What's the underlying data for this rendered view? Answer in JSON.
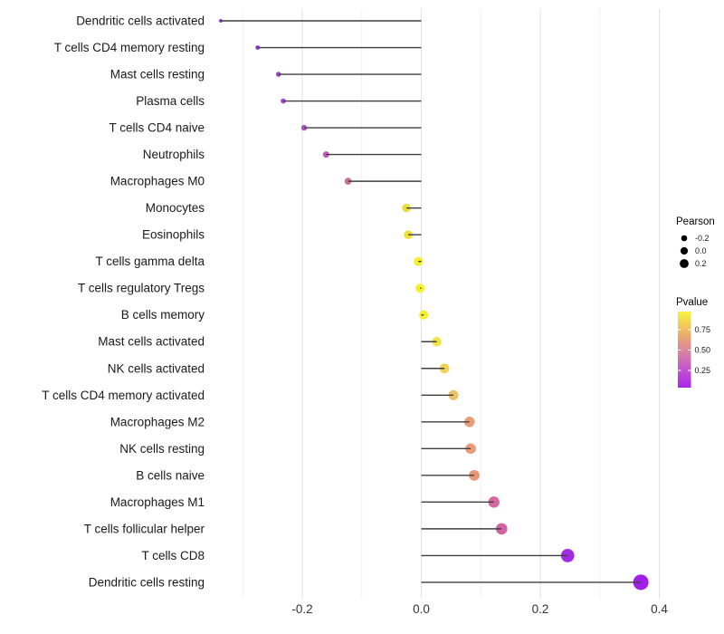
{
  "chart_data": {
    "type": "scatter",
    "variant": "lollipop",
    "title": "",
    "xlabel": "",
    "ylabel": "",
    "grid": "vertical-only",
    "legend_position": "right",
    "x_ticks": [
      -0.2,
      0.0,
      0.2,
      0.4
    ],
    "x_tick_labels": [
      "-0.2",
      "0.0",
      "0.2",
      "0.4"
    ],
    "x_minor_ticks": [
      -0.3,
      -0.1,
      0.1,
      0.3
    ],
    "xlim": [
      -0.355,
      0.4175
    ],
    "categories": [
      "Dendritic cells activated",
      "T cells CD4 memory resting",
      "Mast cells resting",
      "Plasma cells",
      "T cells CD4 naive",
      "Neutrophils",
      "Macrophages M0",
      "Monocytes",
      "Eosinophils",
      "T cells gamma delta",
      "T cells regulatory  Tregs",
      "B cells memory",
      "Mast cells activated",
      "NK cells activated",
      "T cells CD4 memory activated",
      "Macrophages M2",
      "NK cells resting",
      "B cells naive",
      "Macrophages M1",
      "T cells follicular helper",
      "T cells CD8",
      "Dendritic cells resting"
    ],
    "series": [
      {
        "name": "Pearson correlation",
        "values": [
          -0.337,
          -0.275,
          -0.24,
          -0.232,
          -0.197,
          -0.16,
          -0.123,
          -0.025,
          -0.022,
          -0.005,
          -0.002,
          0.004,
          0.026,
          0.039,
          0.054,
          0.081,
          0.083,
          0.089,
          0.122,
          0.135,
          0.246,
          0.369
        ]
      }
    ],
    "point_pvalue_colors": [
      "#8128dc",
      "#9a36d3",
      "#a13ed1",
      "#a844cd",
      "#b24ec6",
      "#c45ab5",
      "#d16d9b",
      "#eedd3f",
      "#efe03b",
      "#f5ef2d",
      "#f5f02c",
      "#f4ee2f",
      "#f2e14a",
      "#f0d455",
      "#edc166",
      "#e89e78",
      "#e89c79",
      "#e79879",
      "#d4679e",
      "#d263a2",
      "#a22ae2",
      "#a01ee6"
    ],
    "stem_color": "#3f3f3f",
    "gridline_major_color": "#e3e3e3",
    "gridline_minor_color": "#f0f0f0",
    "axis_text_color": "#333333",
    "label_text_color": "#1a1a1a",
    "legend": {
      "size_legend": {
        "title": "Pearson",
        "entries": [
          "-0.2",
          "0.0",
          "0.2"
        ],
        "dot_color": "#000000"
      },
      "color_legend": {
        "title": "Pvalue",
        "tick_labels": [
          "0.75",
          "0.50",
          "0.25"
        ],
        "gradient_stops": [
          {
            "offset": "0%",
            "color": "#a826e8"
          },
          {
            "offset": "20%",
            "color": "#bf4cd4"
          },
          {
            "offset": "45%",
            "color": "#d77fa4"
          },
          {
            "offset": "65%",
            "color": "#e8a276"
          },
          {
            "offset": "85%",
            "color": "#f4d055"
          },
          {
            "offset": "100%",
            "color": "#f8f440"
          }
        ]
      }
    }
  }
}
